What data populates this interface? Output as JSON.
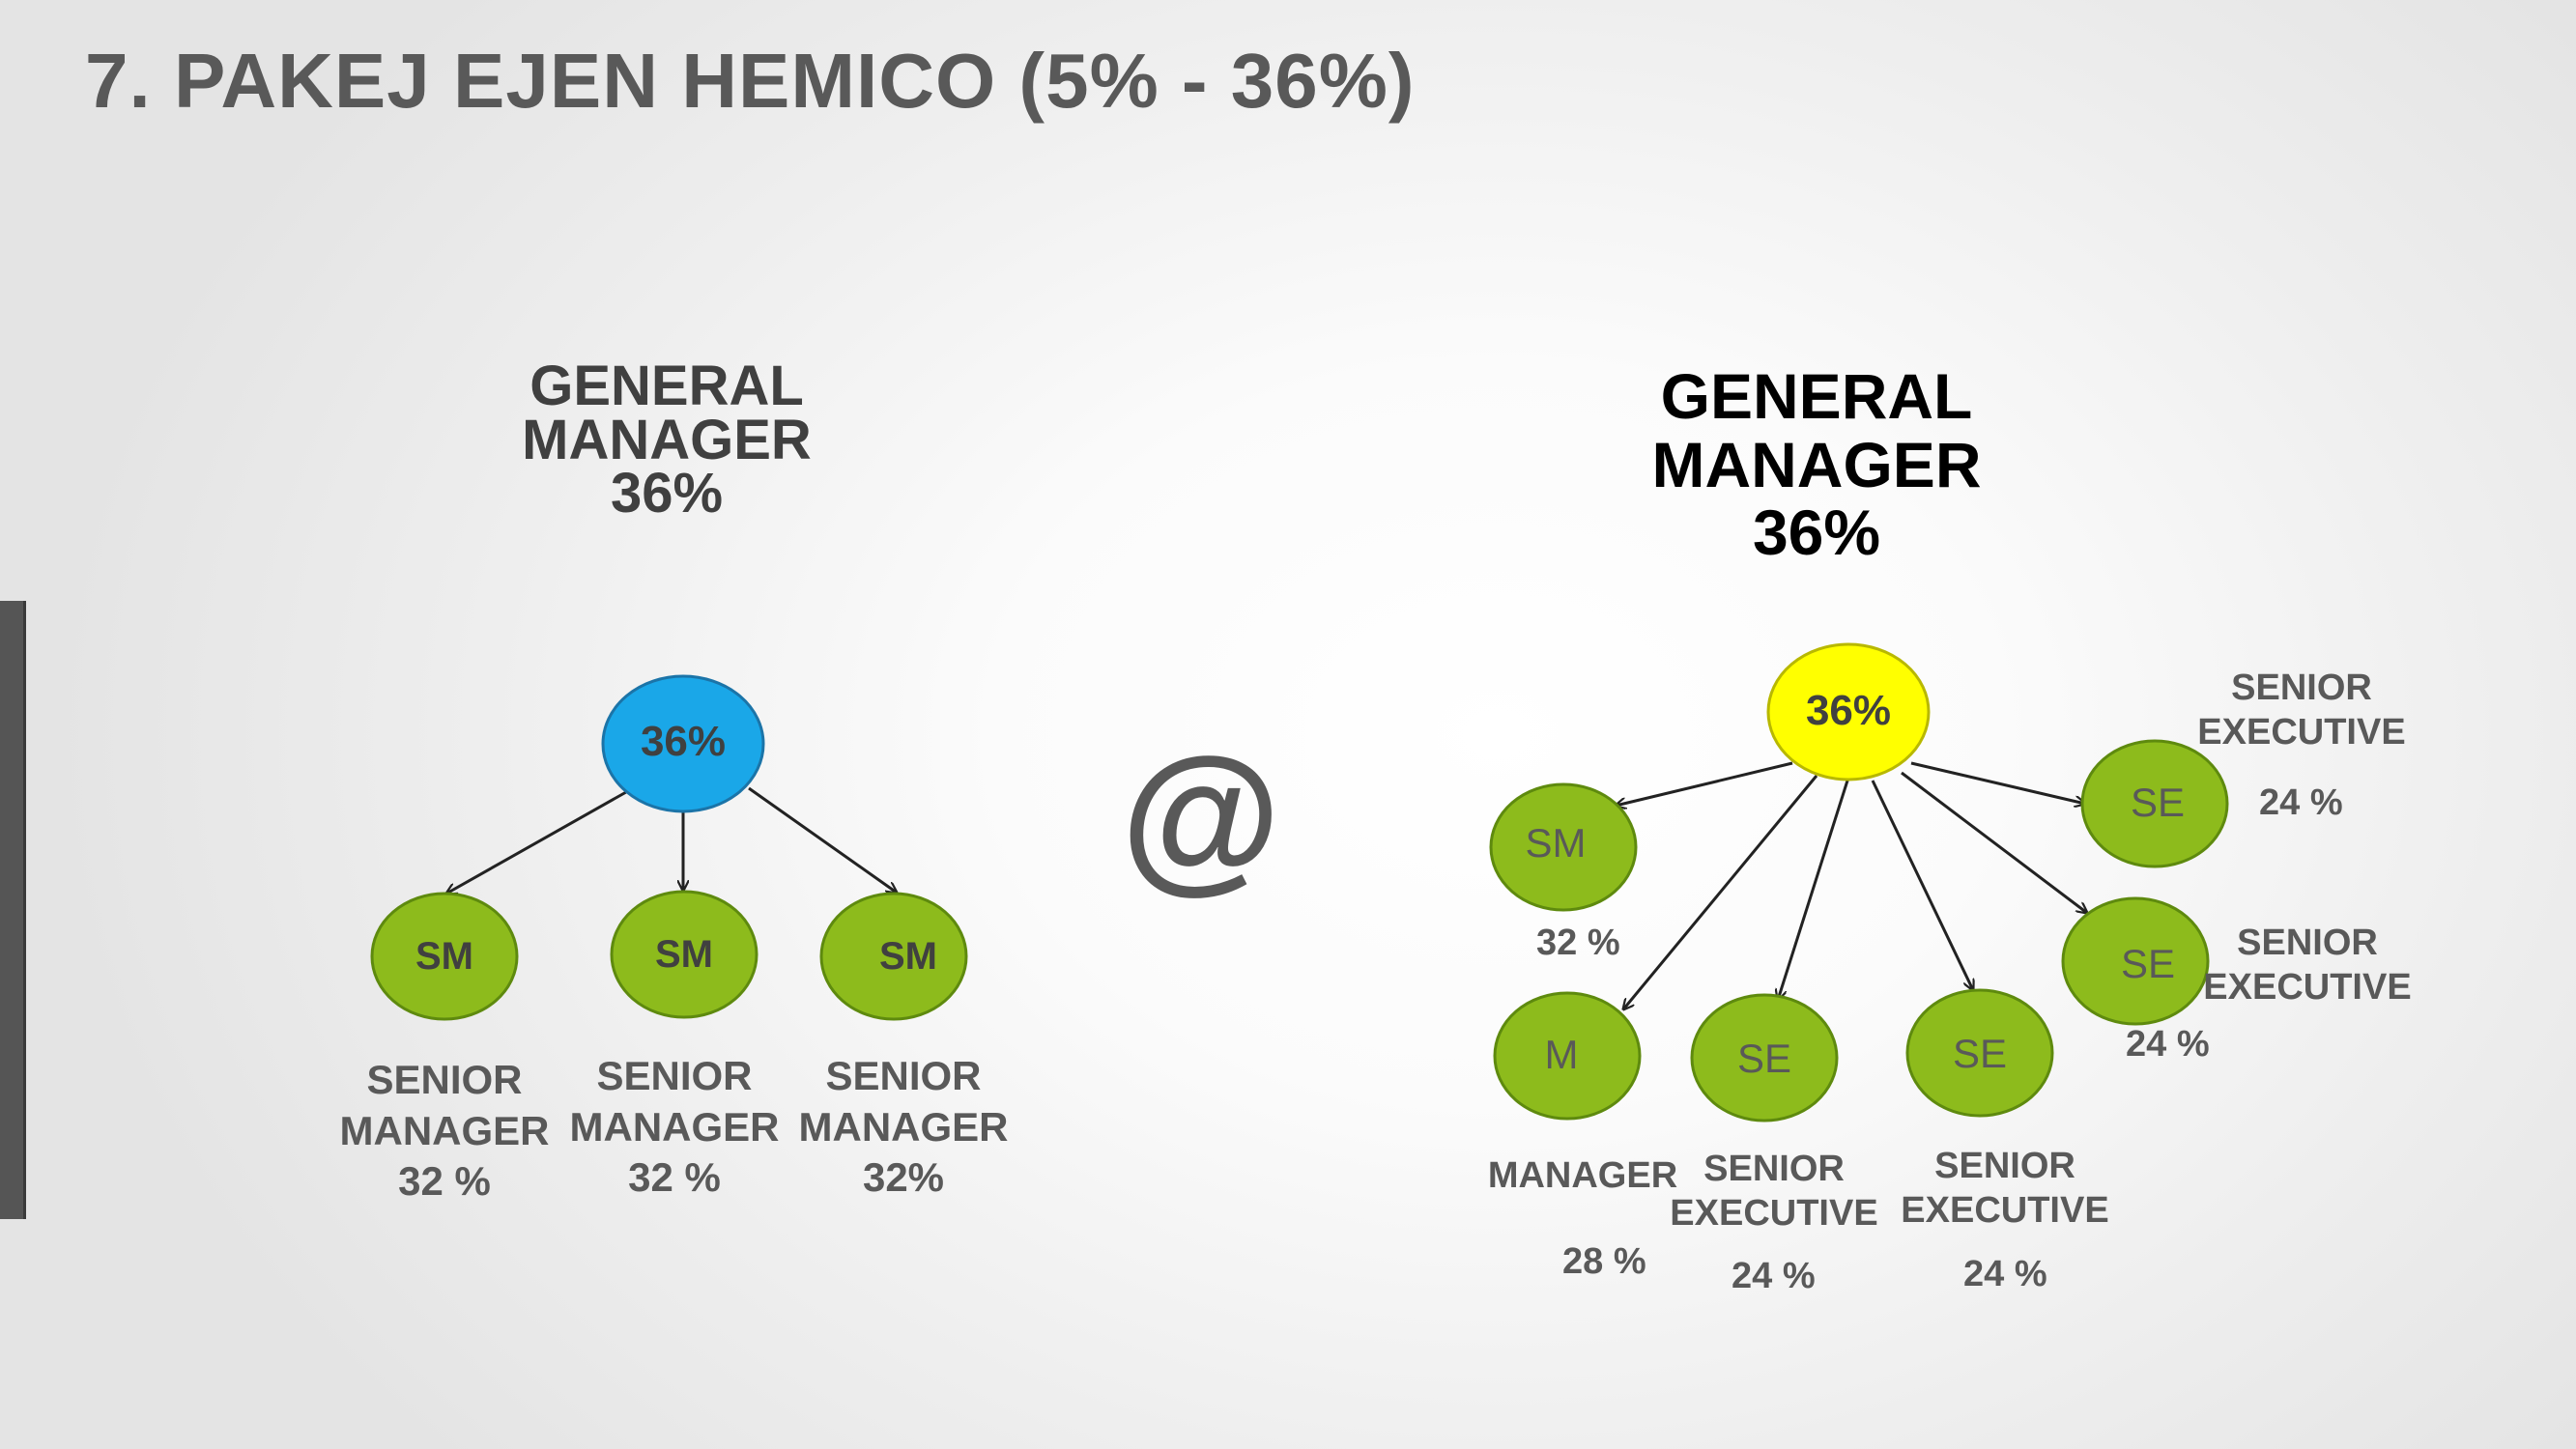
{
  "title": "7. PAKEJ EJEN HEMICO (5% - 36%)",
  "separator_symbol": "@",
  "colors": {
    "title": "#595959",
    "blue_node": "#1aa7e8",
    "yellow_node": "#ffff00",
    "green_node": "#8dbb1c",
    "node_border": "#5e8a0e",
    "label": "#595959"
  },
  "left": {
    "heading": {
      "line1": "GENERAL",
      "line2": "MANAGER",
      "line3": "36%"
    },
    "root": {
      "text": "36%"
    },
    "children": [
      {
        "text": "SM",
        "label_line1": "SENIOR",
        "label_line2": "MANAGER",
        "label_line3": "32 %"
      },
      {
        "text": "SM",
        "label_line1": "SENIOR",
        "label_line2": "MANAGER",
        "label_line3": "32 %"
      },
      {
        "text": "SM",
        "label_line1": "SENIOR",
        "label_line2": "MANAGER",
        "label_line3": "32%"
      }
    ]
  },
  "right": {
    "heading": {
      "line1": "GENERAL",
      "line2": "MANAGER",
      "line3": "36%"
    },
    "root": {
      "text": "36%"
    },
    "children": [
      {
        "text": "SM",
        "pct": "32 %"
      },
      {
        "text": "M",
        "label_line1": "MANAGER",
        "pct": "28 %"
      },
      {
        "text": "SE",
        "label_line1": "SENIOR",
        "label_line2": "EXECUTIVE",
        "pct": "24 %"
      },
      {
        "text": "SE",
        "label_line1": "SENIOR",
        "label_line2": "EXECUTIVE",
        "pct": "24 %"
      },
      {
        "text": "SE",
        "label_line1": "SENIOR",
        "label_line2": "EXECUTIVE",
        "pct": "24 %"
      },
      {
        "text": "SE",
        "label_line1": "SENIOR",
        "label_line2": "EXECUTIVE",
        "pct": "24 %"
      }
    ]
  }
}
